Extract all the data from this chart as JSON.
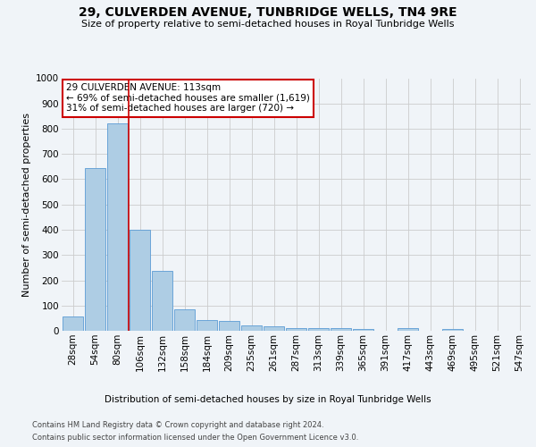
{
  "title": "29, CULVERDEN AVENUE, TUNBRIDGE WELLS, TN4 9RE",
  "subtitle": "Size of property relative to semi-detached houses in Royal Tunbridge Wells",
  "xlabel": "Distribution of semi-detached houses by size in Royal Tunbridge Wells",
  "ylabel": "Number of semi-detached properties",
  "footer_line1": "Contains HM Land Registry data © Crown copyright and database right 2024.",
  "footer_line2": "Contains public sector information licensed under the Open Government Licence v3.0.",
  "annotation_line1": "29 CULVERDEN AVENUE: 113sqm",
  "annotation_line2": "← 69% of semi-detached houses are smaller (1,619)",
  "annotation_line3": "31% of semi-detached houses are larger (720) →",
  "bar_labels": [
    "28sqm",
    "54sqm",
    "80sqm",
    "106sqm",
    "132sqm",
    "158sqm",
    "184sqm",
    "209sqm",
    "235sqm",
    "261sqm",
    "287sqm",
    "313sqm",
    "339sqm",
    "365sqm",
    "391sqm",
    "417sqm",
    "443sqm",
    "469sqm",
    "495sqm",
    "521sqm",
    "547sqm"
  ],
  "bar_values": [
    55,
    645,
    820,
    400,
    238,
    85,
    42,
    38,
    22,
    17,
    9,
    12,
    9,
    8,
    0,
    9,
    0,
    7,
    0,
    0,
    0
  ],
  "bar_color": "#aecde4",
  "bar_edgecolor": "#5b9bd5",
  "vline_after_index": 2,
  "ylim": [
    0,
    1000
  ],
  "yticks": [
    0,
    100,
    200,
    300,
    400,
    500,
    600,
    700,
    800,
    900,
    1000
  ],
  "background_color": "#f0f4f8",
  "grid_color": "#cccccc",
  "vline_color": "#cc0000",
  "annotation_box_edgecolor": "#cc0000",
  "annotation_box_facecolor": "#ffffff",
  "title_fontsize": 10,
  "subtitle_fontsize": 8,
  "ylabel_fontsize": 8,
  "xlabel_fontsize": 7.5,
  "tick_fontsize": 7.5,
  "footer_fontsize": 6,
  "annotation_fontsize": 7.5
}
